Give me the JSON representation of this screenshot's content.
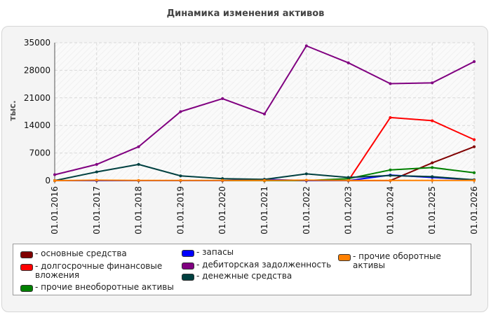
{
  "chart_data": {
    "type": "line",
    "title": "Динамика изменения активов",
    "ylabel": "тыс.",
    "xlabel": "",
    "ylim": [
      0,
      35000
    ],
    "yticks": [
      0,
      7000,
      14000,
      21000,
      28000,
      35000
    ],
    "categories": [
      "01.01.2016",
      "01.01.2017",
      "01.01.2018",
      "01.01.2019",
      "01.01.2020",
      "01.01.2021",
      "01.01.2022",
      "01.01.2023",
      "01.01.2024",
      "01.01.2025",
      "01.01.2026"
    ],
    "grid": true,
    "legend_position": "bottom",
    "series": [
      {
        "name": "основные средства",
        "color": "#800000",
        "values": [
          0,
          0,
          0,
          0,
          0,
          0,
          0,
          0,
          0,
          4500,
          8600
        ]
      },
      {
        "name": "долгосрочные финансовые вложения",
        "color": "#ff0000",
        "values": [
          0,
          0,
          0,
          0,
          0,
          0,
          0,
          0,
          16000,
          15200,
          10400
        ]
      },
      {
        "name": "прочие внеоборотные активы",
        "color": "#008000",
        "values": [
          0,
          0,
          0,
          0,
          0,
          0,
          0,
          500,
          2700,
          3300,
          2000
        ]
      },
      {
        "name": "запасы",
        "color": "#0000ff",
        "values": [
          0,
          0,
          0,
          0,
          0,
          300,
          0,
          0,
          1400,
          800,
          200
        ]
      },
      {
        "name": "дебиторская задолженность",
        "color": "#800080",
        "values": [
          1500,
          4100,
          8600,
          17500,
          20800,
          16900,
          34200,
          29900,
          24600,
          24800,
          30200
        ]
      },
      {
        "name": "денежные средства",
        "color": "#004040",
        "values": [
          0,
          2200,
          4100,
          1200,
          500,
          300,
          1700,
          800,
          1300,
          1000,
          200
        ]
      },
      {
        "name": "прочие оборотные активы",
        "color": "#ff8000",
        "values": [
          0,
          100,
          50,
          50,
          50,
          50,
          100,
          50,
          50,
          50,
          50
        ]
      }
    ]
  },
  "legend": {
    "items": [
      {
        "label": "- основные средства",
        "color": "#800000"
      },
      {
        "label": "- долгосрочные финансовые вложения",
        "color": "#ff0000"
      },
      {
        "label": "- прочие внеоборотные активы",
        "color": "#008000"
      },
      {
        "label": "- запасы",
        "color": "#0000ff"
      },
      {
        "label": "- дебиторская задолженность",
        "color": "#800080"
      },
      {
        "label": "- денежные средства",
        "color": "#004040"
      },
      {
        "label": "- прочие оборотные активы",
        "color": "#ff8000"
      }
    ]
  }
}
